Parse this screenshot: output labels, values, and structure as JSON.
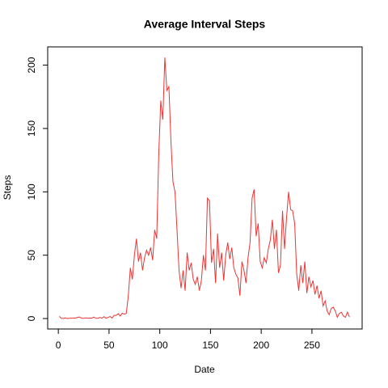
{
  "chart_data": {
    "type": "line",
    "title": "Average Interval Steps",
    "x_label": "Date",
    "y_label": "Steps",
    "x": [
      1,
      3,
      5,
      7,
      9,
      11,
      13,
      15,
      17,
      19,
      21,
      23,
      25,
      27,
      29,
      31,
      33,
      35,
      37,
      39,
      41,
      43,
      45,
      47,
      49,
      51,
      53,
      55,
      57,
      59,
      61,
      63,
      65,
      67,
      69,
      71,
      73,
      75,
      77,
      79,
      81,
      83,
      85,
      87,
      89,
      91,
      93,
      95,
      97,
      99,
      101,
      103,
      105,
      107,
      109,
      111,
      113,
      115,
      117,
      119,
      121,
      123,
      125,
      127,
      129,
      131,
      133,
      135,
      137,
      139,
      141,
      143,
      145,
      147,
      149,
      151,
      153,
      155,
      157,
      159,
      161,
      163,
      165,
      167,
      169,
      171,
      173,
      175,
      177,
      179,
      181,
      183,
      185,
      187,
      189,
      191,
      193,
      195,
      197,
      199,
      201,
      203,
      205,
      207,
      209,
      211,
      213,
      215,
      217,
      219,
      221,
      223,
      225,
      227,
      229,
      231,
      233,
      235,
      237,
      239,
      241,
      243,
      245,
      247,
      249,
      251,
      253,
      255,
      257,
      259,
      261,
      263,
      265,
      267,
      269,
      271,
      273,
      275,
      277,
      279,
      281,
      283,
      285,
      287
    ],
    "series": [
      {
        "name": "Steps",
        "color": "#ee3333",
        "values": [
          1.7,
          0.1,
          0.1,
          0.5,
          0,
          0.3,
          0.3,
          0.4,
          0.4,
          0.9,
          1.2,
          0.2,
          0.2,
          0.5,
          0.3,
          0.4,
          0.3,
          1.1,
          0.2,
          0.2,
          0.8,
          0.3,
          1.5,
          0.2,
          0.9,
          1.6,
          0.4,
          2.5,
          2.5,
          3.8,
          2.0,
          4.2,
          3.4,
          4.0,
          18,
          40,
          31,
          50,
          63,
          45,
          52,
          38,
          48,
          54,
          50,
          56,
          46,
          70,
          63,
          130,
          172,
          157,
          206,
          180,
          183,
          140,
          108,
          100,
          70,
          38,
          24,
          38,
          22,
          52,
          38,
          44,
          31,
          27,
          33,
          22,
          30,
          50,
          38,
          95,
          93,
          44,
          55,
          28,
          67,
          40,
          52,
          30,
          50,
          60,
          47,
          56,
          40,
          35,
          32,
          18,
          45,
          38,
          28,
          48,
          60,
          95,
          102,
          65,
          75,
          45,
          40,
          48,
          44,
          55,
          62,
          78,
          55,
          70,
          36,
          42,
          85,
          55,
          80,
          100,
          86,
          85,
          75,
          35,
          22,
          42,
          28,
          45,
          20,
          33,
          25,
          30,
          19,
          26,
          16,
          22,
          10,
          14,
          6,
          3,
          8,
          9,
          6,
          1,
          4,
          5,
          2,
          1,
          5,
          1.1
        ]
      }
    ],
    "xlim": [
      -10.48,
      299.48
    ],
    "ylim": [
      -8.25,
      214.4
    ],
    "xticks": [
      0,
      50,
      100,
      150,
      200,
      250
    ],
    "yticks": [
      0,
      50,
      100,
      150,
      200
    ]
  }
}
